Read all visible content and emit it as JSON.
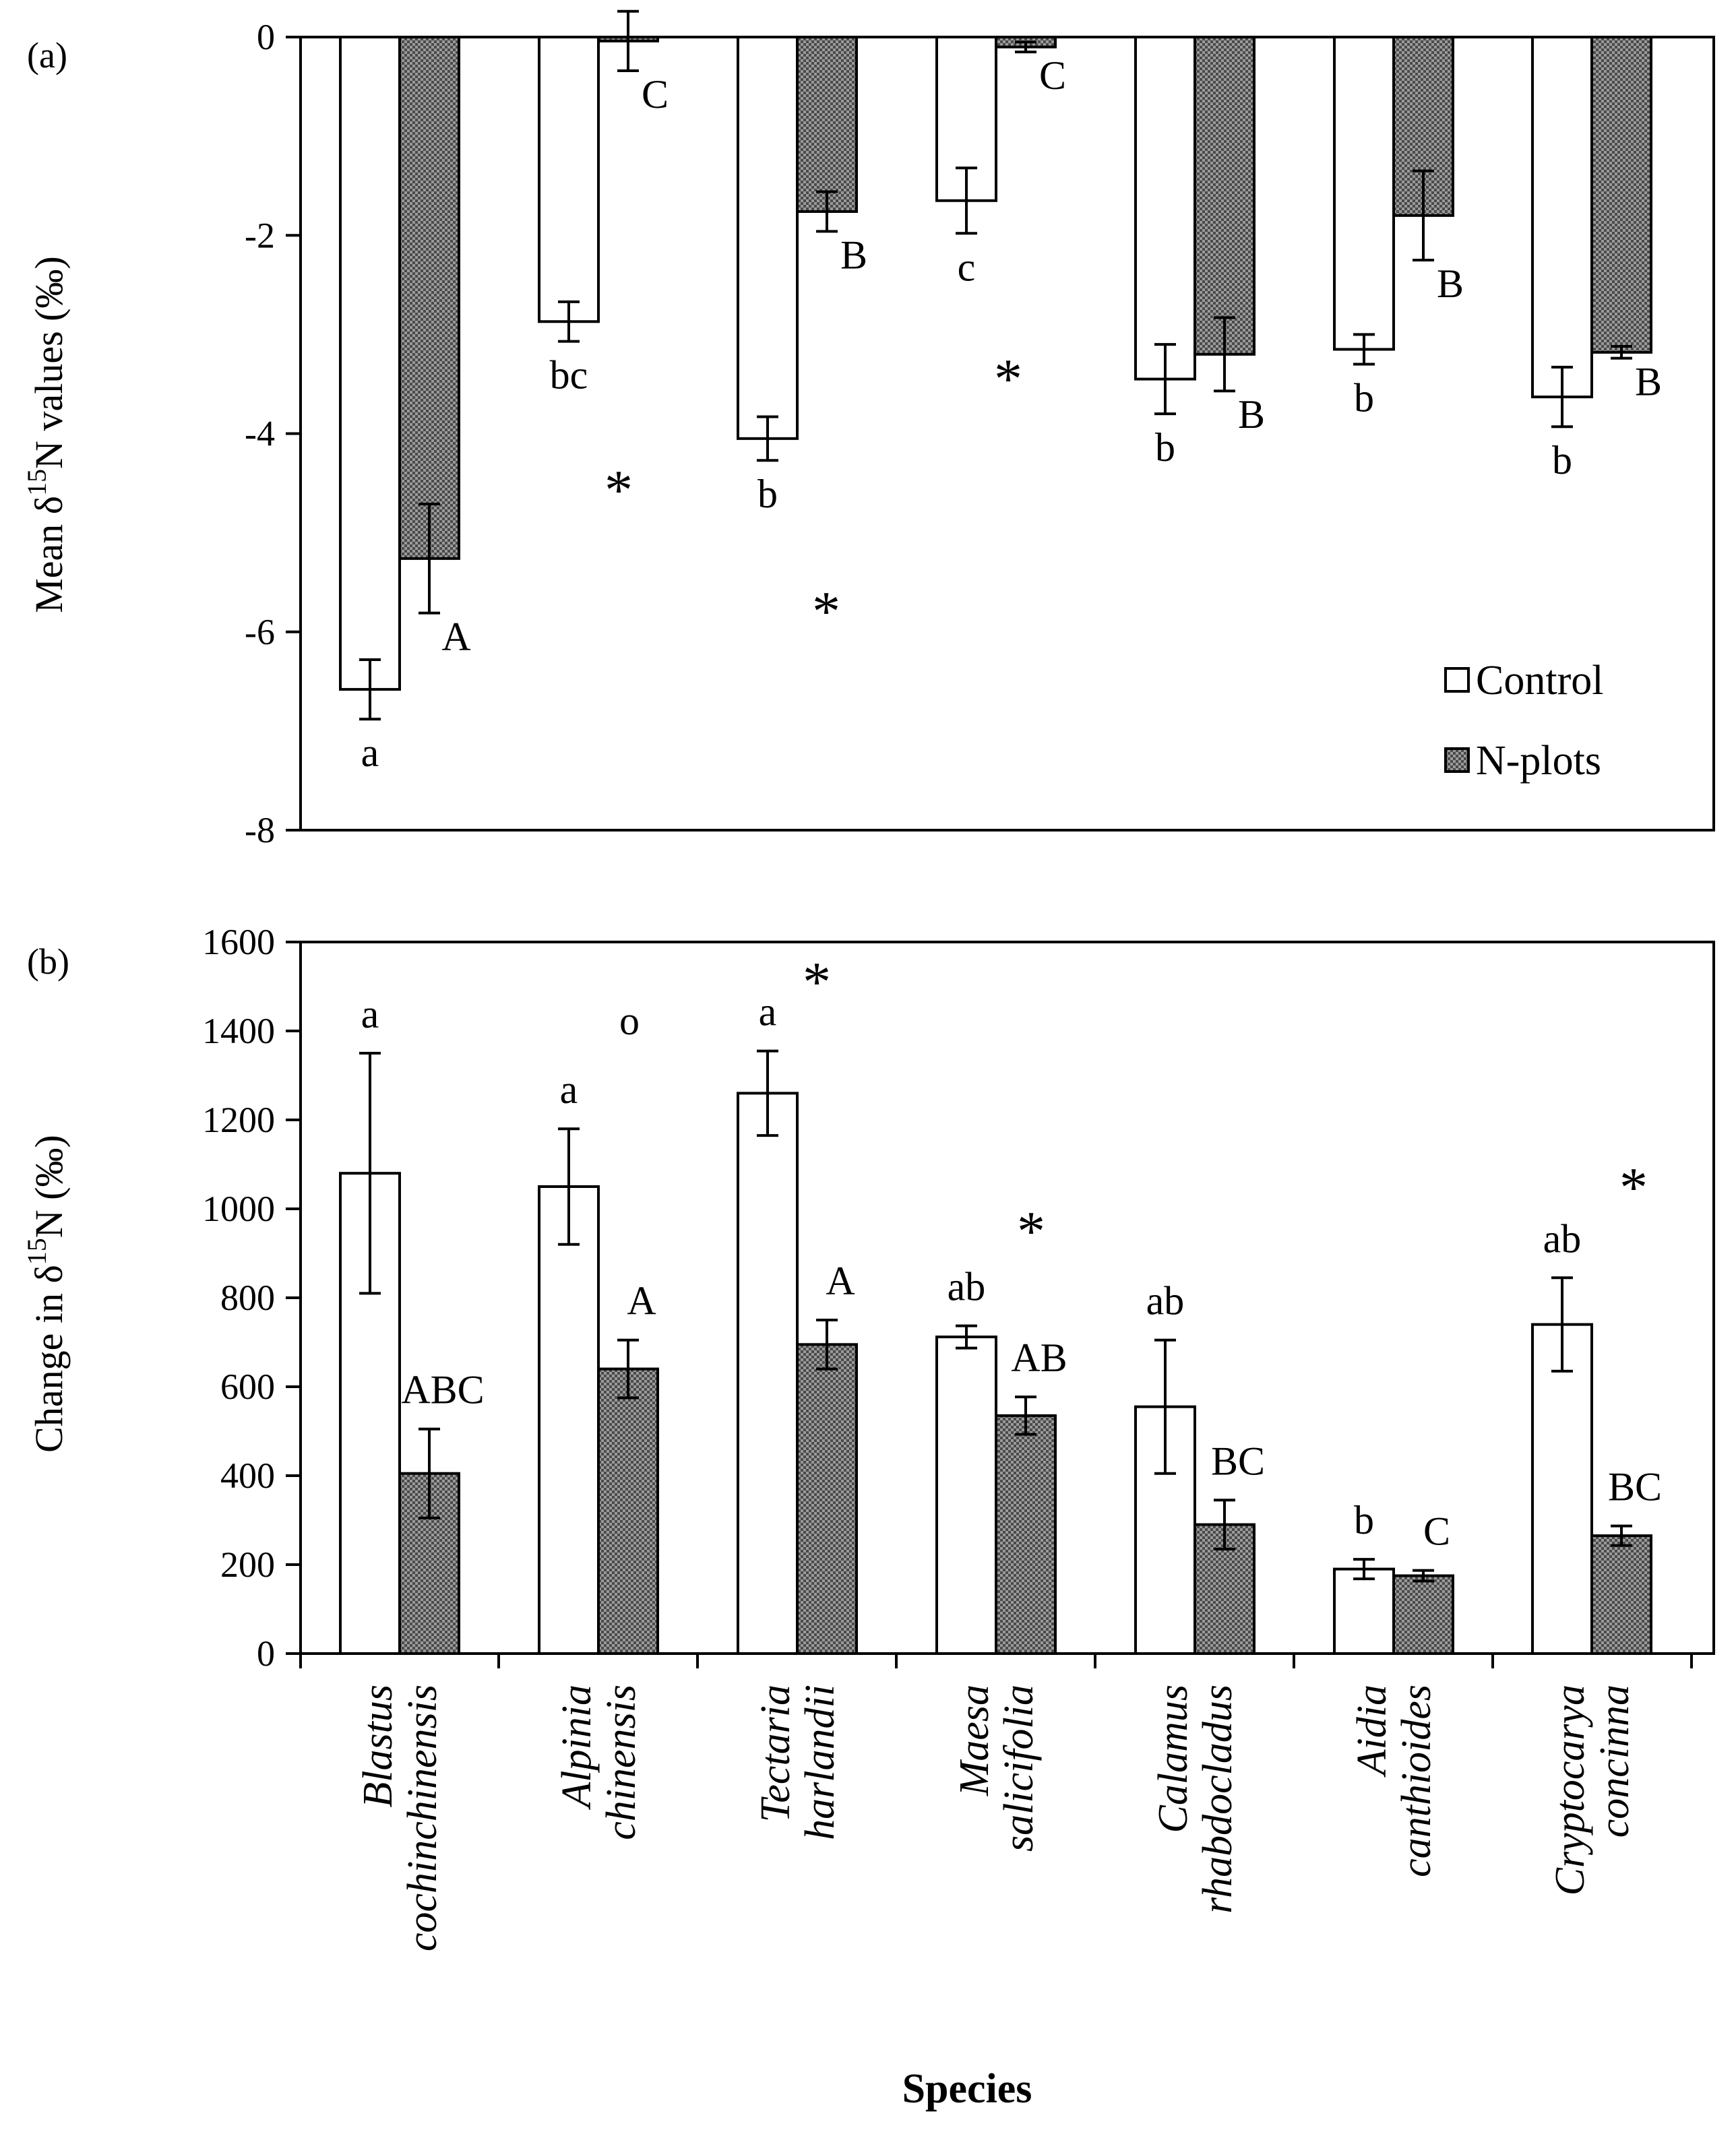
{
  "species": [
    [
      "Blastus",
      "cochinchinensis"
    ],
    [
      "Alpinia",
      "chinensis"
    ],
    [
      "Tectaria",
      "harlandii"
    ],
    [
      "Maesa",
      "salicifolia"
    ],
    [
      "Calamus",
      "rhabdocladus"
    ],
    [
      "Aidia",
      "canthioides"
    ],
    [
      "Cryptocarya",
      "concinna"
    ]
  ],
  "colors": {
    "control_fill": "#ffffff",
    "nplots_fill": "#9a9a9a",
    "stroke": "#000000"
  },
  "legend": [
    "Control",
    "N-plots"
  ],
  "chart_data": [
    {
      "type": "bar",
      "panel_label": "(a)",
      "ylabel": "Mean δ¹⁵N values (‰)",
      "ylabel_parts": [
        "Mean δ",
        "15",
        "N values (‰)"
      ],
      "ylim": [
        -8,
        0
      ],
      "yticks": [
        0,
        -2,
        -4,
        -6,
        -8
      ],
      "series": [
        {
          "name": "Control",
          "values": [
            -6.58,
            -2.87,
            -4.05,
            -1.65,
            -3.45,
            -3.15,
            -3.63
          ],
          "errors": [
            0.3,
            0.2,
            0.22,
            0.33,
            0.35,
            0.15,
            0.3
          ],
          "letters": [
            "a",
            "bc",
            "b",
            "c",
            "b",
            "b",
            "b"
          ]
        },
        {
          "name": "N-plots",
          "values": [
            -5.26,
            -0.04,
            -1.76,
            -0.1,
            -3.2,
            -1.8,
            -3.18
          ],
          "errors": [
            0.55,
            0.3,
            0.2,
            0.05,
            0.37,
            0.45,
            0.06
          ],
          "letters": [
            "A",
            "C",
            "B",
            "C",
            "B",
            "B",
            "B"
          ]
        }
      ],
      "annotations": [
        "*",
        "*",
        "*"
      ]
    },
    {
      "type": "bar",
      "panel_label": "(b)",
      "ylabel": "Change in δ¹⁵N (‰)",
      "ylabel_parts": [
        "Change in δ",
        "15",
        "N (‰)"
      ],
      "xlabel": "Species",
      "ylim": [
        0,
        1600
      ],
      "yticks": [
        0,
        200,
        400,
        600,
        800,
        1000,
        1200,
        1400,
        1600
      ],
      "series": [
        {
          "name": "Control",
          "values": [
            1080,
            1050,
            1260,
            712,
            555,
            190,
            740
          ],
          "errors": [
            270,
            130,
            95,
            25,
            150,
            22,
            105
          ],
          "letters": [
            "a",
            "a",
            "a",
            "ab",
            "ab",
            "b",
            "ab"
          ]
        },
        {
          "name": "N-plots",
          "values": [
            405,
            640,
            695,
            535,
            290,
            175,
            265
          ],
          "errors": [
            100,
            65,
            55,
            42,
            55,
            12,
            22
          ],
          "letters": [
            "ABC",
            "A",
            "A",
            "AB",
            "BC",
            "C",
            "BC"
          ]
        }
      ],
      "annotations": [
        "o",
        "*",
        "*",
        "*"
      ]
    }
  ]
}
